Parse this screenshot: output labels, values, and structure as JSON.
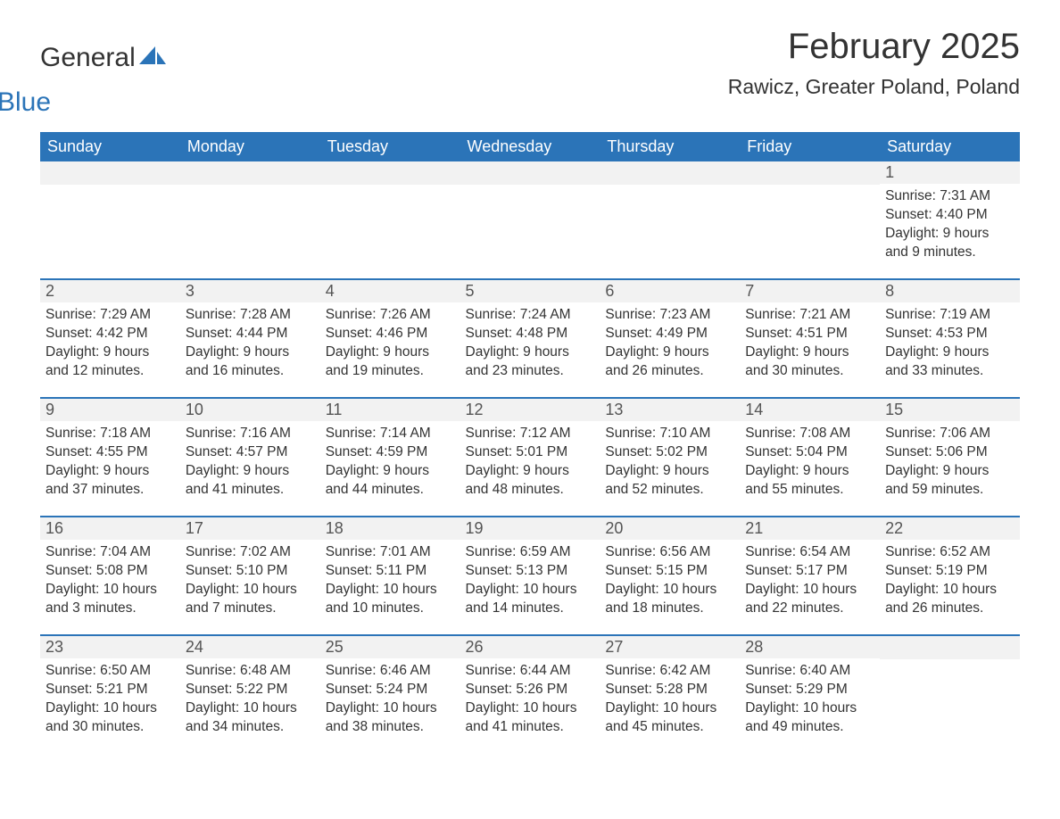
{
  "brand": {
    "word1": "General",
    "word2": "Blue",
    "logo_color": "#2b74b8",
    "text_color": "#333333"
  },
  "title": "February 2025",
  "location": "Rawicz, Greater Poland, Poland",
  "colors": {
    "header_bg": "#2b74b8",
    "header_text": "#ffffff",
    "daynum_bg": "#f2f2f2",
    "daynum_text": "#555555",
    "body_text": "#333333",
    "divider": "#2b74b8",
    "page_bg": "#ffffff"
  },
  "typography": {
    "title_fontsize": 40,
    "location_fontsize": 23,
    "weekday_fontsize": 18,
    "body_fontsize": 15.5
  },
  "weekdays": [
    "Sunday",
    "Monday",
    "Tuesday",
    "Wednesday",
    "Thursday",
    "Friday",
    "Saturday"
  ],
  "labels": {
    "sunrise": "Sunrise",
    "sunset": "Sunset",
    "daylight": "Daylight"
  },
  "weeks": [
    [
      null,
      null,
      null,
      null,
      null,
      null,
      {
        "n": "1",
        "sunrise": "7:31 AM",
        "sunset": "4:40 PM",
        "daylight": "9 hours and 9 minutes."
      }
    ],
    [
      {
        "n": "2",
        "sunrise": "7:29 AM",
        "sunset": "4:42 PM",
        "daylight": "9 hours and 12 minutes."
      },
      {
        "n": "3",
        "sunrise": "7:28 AM",
        "sunset": "4:44 PM",
        "daylight": "9 hours and 16 minutes."
      },
      {
        "n": "4",
        "sunrise": "7:26 AM",
        "sunset": "4:46 PM",
        "daylight": "9 hours and 19 minutes."
      },
      {
        "n": "5",
        "sunrise": "7:24 AM",
        "sunset": "4:48 PM",
        "daylight": "9 hours and 23 minutes."
      },
      {
        "n": "6",
        "sunrise": "7:23 AM",
        "sunset": "4:49 PM",
        "daylight": "9 hours and 26 minutes."
      },
      {
        "n": "7",
        "sunrise": "7:21 AM",
        "sunset": "4:51 PM",
        "daylight": "9 hours and 30 minutes."
      },
      {
        "n": "8",
        "sunrise": "7:19 AM",
        "sunset": "4:53 PM",
        "daylight": "9 hours and 33 minutes."
      }
    ],
    [
      {
        "n": "9",
        "sunrise": "7:18 AM",
        "sunset": "4:55 PM",
        "daylight": "9 hours and 37 minutes."
      },
      {
        "n": "10",
        "sunrise": "7:16 AM",
        "sunset": "4:57 PM",
        "daylight": "9 hours and 41 minutes."
      },
      {
        "n": "11",
        "sunrise": "7:14 AM",
        "sunset": "4:59 PM",
        "daylight": "9 hours and 44 minutes."
      },
      {
        "n": "12",
        "sunrise": "7:12 AM",
        "sunset": "5:01 PM",
        "daylight": "9 hours and 48 minutes."
      },
      {
        "n": "13",
        "sunrise": "7:10 AM",
        "sunset": "5:02 PM",
        "daylight": "9 hours and 52 minutes."
      },
      {
        "n": "14",
        "sunrise": "7:08 AM",
        "sunset": "5:04 PM",
        "daylight": "9 hours and 55 minutes."
      },
      {
        "n": "15",
        "sunrise": "7:06 AM",
        "sunset": "5:06 PM",
        "daylight": "9 hours and 59 minutes."
      }
    ],
    [
      {
        "n": "16",
        "sunrise": "7:04 AM",
        "sunset": "5:08 PM",
        "daylight": "10 hours and 3 minutes."
      },
      {
        "n": "17",
        "sunrise": "7:02 AM",
        "sunset": "5:10 PM",
        "daylight": "10 hours and 7 minutes."
      },
      {
        "n": "18",
        "sunrise": "7:01 AM",
        "sunset": "5:11 PM",
        "daylight": "10 hours and 10 minutes."
      },
      {
        "n": "19",
        "sunrise": "6:59 AM",
        "sunset": "5:13 PM",
        "daylight": "10 hours and 14 minutes."
      },
      {
        "n": "20",
        "sunrise": "6:56 AM",
        "sunset": "5:15 PM",
        "daylight": "10 hours and 18 minutes."
      },
      {
        "n": "21",
        "sunrise": "6:54 AM",
        "sunset": "5:17 PM",
        "daylight": "10 hours and 22 minutes."
      },
      {
        "n": "22",
        "sunrise": "6:52 AM",
        "sunset": "5:19 PM",
        "daylight": "10 hours and 26 minutes."
      }
    ],
    [
      {
        "n": "23",
        "sunrise": "6:50 AM",
        "sunset": "5:21 PM",
        "daylight": "10 hours and 30 minutes."
      },
      {
        "n": "24",
        "sunrise": "6:48 AM",
        "sunset": "5:22 PM",
        "daylight": "10 hours and 34 minutes."
      },
      {
        "n": "25",
        "sunrise": "6:46 AM",
        "sunset": "5:24 PM",
        "daylight": "10 hours and 38 minutes."
      },
      {
        "n": "26",
        "sunrise": "6:44 AM",
        "sunset": "5:26 PM",
        "daylight": "10 hours and 41 minutes."
      },
      {
        "n": "27",
        "sunrise": "6:42 AM",
        "sunset": "5:28 PM",
        "daylight": "10 hours and 45 minutes."
      },
      {
        "n": "28",
        "sunrise": "6:40 AM",
        "sunset": "5:29 PM",
        "daylight": "10 hours and 49 minutes."
      },
      null
    ]
  ]
}
